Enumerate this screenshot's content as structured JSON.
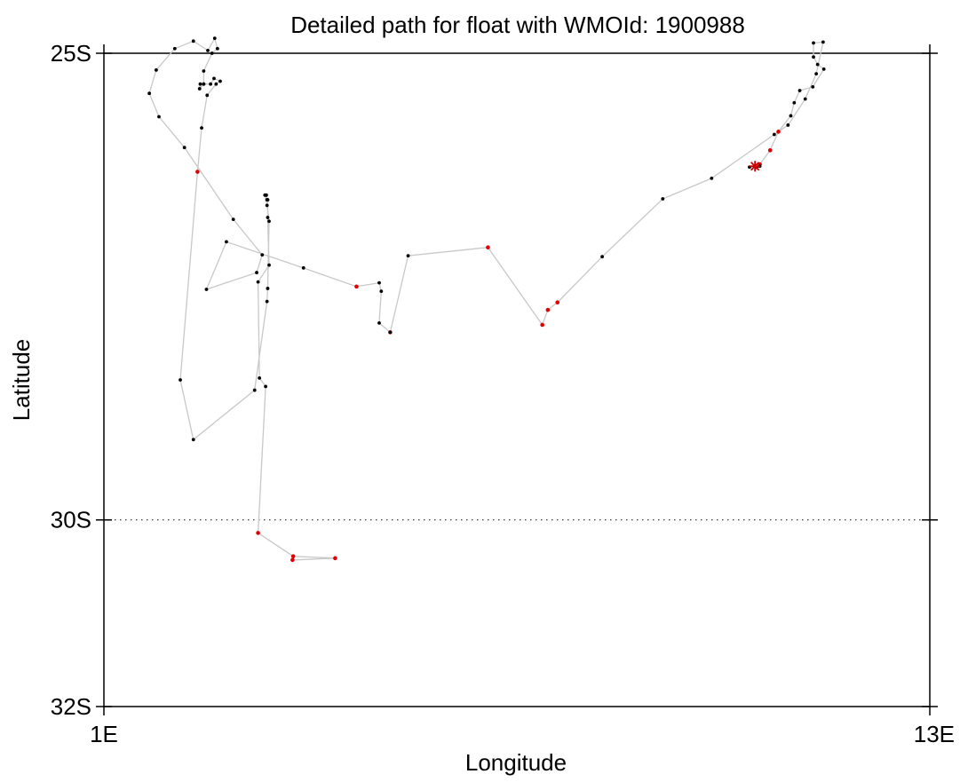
{
  "chart_data": {
    "type": "scatter",
    "title": "Detailed path for float with WMOId: 1900988",
    "xlabel": "Longitude",
    "ylabel": "Latitude",
    "xlim": [
      1,
      13
    ],
    "ylim": [
      -32,
      -25
    ],
    "x_ticks": [
      {
        "value": 1,
        "label": "1E"
      },
      {
        "value": 13,
        "label": "13E"
      }
    ],
    "y_ticks": [
      {
        "value": -25,
        "label": "25S"
      },
      {
        "value": -30,
        "label": "30S"
      },
      {
        "value": -32,
        "label": "32S"
      }
    ],
    "reference_line": {
      "y": -30,
      "style": "dotted"
    },
    "grid": false,
    "colors": {
      "track": "#c8c8c8",
      "position_point": "#000000",
      "highlight_point": "#e00000",
      "marker": "#cc0000",
      "axis": "#000000"
    },
    "series": [
      {
        "marker": "dot",
        "line": true,
        "points": [
          {
            "x": 3.74,
            "y": -30.43,
            "flag": "red"
          },
          {
            "x": 4.36,
            "y": -30.41,
            "flag": "red"
          },
          {
            "x": 3.75,
            "y": -30.39,
            "flag": "red"
          },
          {
            "x": 3.24,
            "y": -30.14,
            "flag": "red"
          },
          {
            "x": 3.35,
            "y": -28.57
          },
          {
            "x": 3.26,
            "y": -28.48
          },
          {
            "x": 3.24,
            "y": -27.45
          },
          {
            "x": 3.4,
            "y": -27.27
          },
          {
            "x": 3.38,
            "y": -26.76
          },
          {
            "x": 3.38,
            "y": -26.57
          },
          {
            "x": 3.37,
            "y": -26.57
          },
          {
            "x": 3.36,
            "y": -26.52
          },
          {
            "x": 3.34,
            "y": -26.52
          },
          {
            "x": 3.37,
            "y": -26.63
          },
          {
            "x": 3.4,
            "y": -26.8
          },
          {
            "x": 3.38,
            "y": -27.52
          },
          {
            "x": 3.37,
            "y": -27.66
          },
          {
            "x": 3.19,
            "y": -28.61
          },
          {
            "x": 2.3,
            "y": -29.14
          },
          {
            "x": 2.11,
            "y": -28.5
          },
          {
            "x": 2.36,
            "y": -26.27,
            "flag": "red"
          },
          {
            "x": 2.42,
            "y": -25.8
          },
          {
            "x": 2.5,
            "y": -25.45
          },
          {
            "x": 2.63,
            "y": -25.33
          },
          {
            "x": 2.69,
            "y": -25.3
          },
          {
            "x": 2.6,
            "y": -25.27
          },
          {
            "x": 2.55,
            "y": -25.33
          },
          {
            "x": 2.45,
            "y": -25.33
          },
          {
            "x": 2.39,
            "y": -25.38
          },
          {
            "x": 2.4,
            "y": -25.33
          },
          {
            "x": 2.45,
            "y": -25.33
          },
          {
            "x": 2.45,
            "y": -25.19
          },
          {
            "x": 2.57,
            "y": -25.0
          },
          {
            "x": 2.65,
            "y": -24.95
          },
          {
            "x": 2.61,
            "y": -24.84
          },
          {
            "x": 2.51,
            "y": -24.97
          },
          {
            "x": 2.3,
            "y": -24.87
          },
          {
            "x": 2.03,
            "y": -24.95
          },
          {
            "x": 1.76,
            "y": -25.18
          },
          {
            "x": 1.66,
            "y": -25.43
          },
          {
            "x": 1.8,
            "y": -25.68
          },
          {
            "x": 2.17,
            "y": -26.01
          },
          {
            "x": 2.88,
            "y": -26.78
          },
          {
            "x": 3.3,
            "y": -27.16
          },
          {
            "x": 3.22,
            "y": -27.35
          },
          {
            "x": 2.49,
            "y": -27.53
          },
          {
            "x": 2.78,
            "y": -27.02
          },
          {
            "x": 3.9,
            "y": -27.3
          },
          {
            "x": 4.67,
            "y": -27.5,
            "flag": "red"
          },
          {
            "x": 5.0,
            "y": -27.46
          },
          {
            "x": 5.03,
            "y": -27.55
          },
          {
            "x": 5.0,
            "y": -27.89
          },
          {
            "x": 5.16,
            "y": -27.99,
            "flag": "red"
          },
          {
            "x": 5.16,
            "y": -27.99
          },
          {
            "x": 5.42,
            "y": -27.17
          },
          {
            "x": 6.58,
            "y": -27.08,
            "flag": "red"
          },
          {
            "x": 7.37,
            "y": -27.91,
            "flag": "red"
          },
          {
            "x": 7.45,
            "y": -27.75,
            "flag": "red"
          },
          {
            "x": 7.59,
            "y": -27.67,
            "flag": "red"
          },
          {
            "x": 8.24,
            "y": -27.18
          },
          {
            "x": 9.12,
            "y": -26.56
          },
          {
            "x": 9.83,
            "y": -26.34
          },
          {
            "x": 10.74,
            "y": -25.87
          },
          {
            "x": 10.94,
            "y": -25.77
          },
          {
            "x": 11.19,
            "y": -25.49
          },
          {
            "x": 11.35,
            "y": -25.22
          },
          {
            "x": 11.45,
            "y": -24.88
          },
          {
            "x": 11.31,
            "y": -24.89
          },
          {
            "x": 11.31,
            "y": -25.04
          },
          {
            "x": 11.37,
            "y": -25.12
          },
          {
            "x": 11.46,
            "y": -25.17
          },
          {
            "x": 11.3,
            "y": -25.36
          },
          {
            "x": 11.11,
            "y": -25.4
          },
          {
            "x": 11.03,
            "y": -25.53
          },
          {
            "x": 10.98,
            "y": -25.67
          },
          {
            "x": 10.8,
            "y": -25.84
          },
          {
            "x": 10.8,
            "y": -25.84,
            "flag": "red"
          },
          {
            "x": 10.68,
            "y": -26.04,
            "flag": "red"
          },
          {
            "x": 10.53,
            "y": -26.19,
            "flag": "red"
          },
          {
            "x": 10.48,
            "y": -26.22,
            "flag": "red"
          },
          {
            "x": 10.53,
            "y": -26.21
          },
          {
            "x": 10.48,
            "y": -26.22
          },
          {
            "x": 10.38,
            "y": -26.22
          },
          {
            "x": 10.46,
            "y": -26.21,
            "marker": "asterisk"
          }
        ]
      }
    ]
  }
}
